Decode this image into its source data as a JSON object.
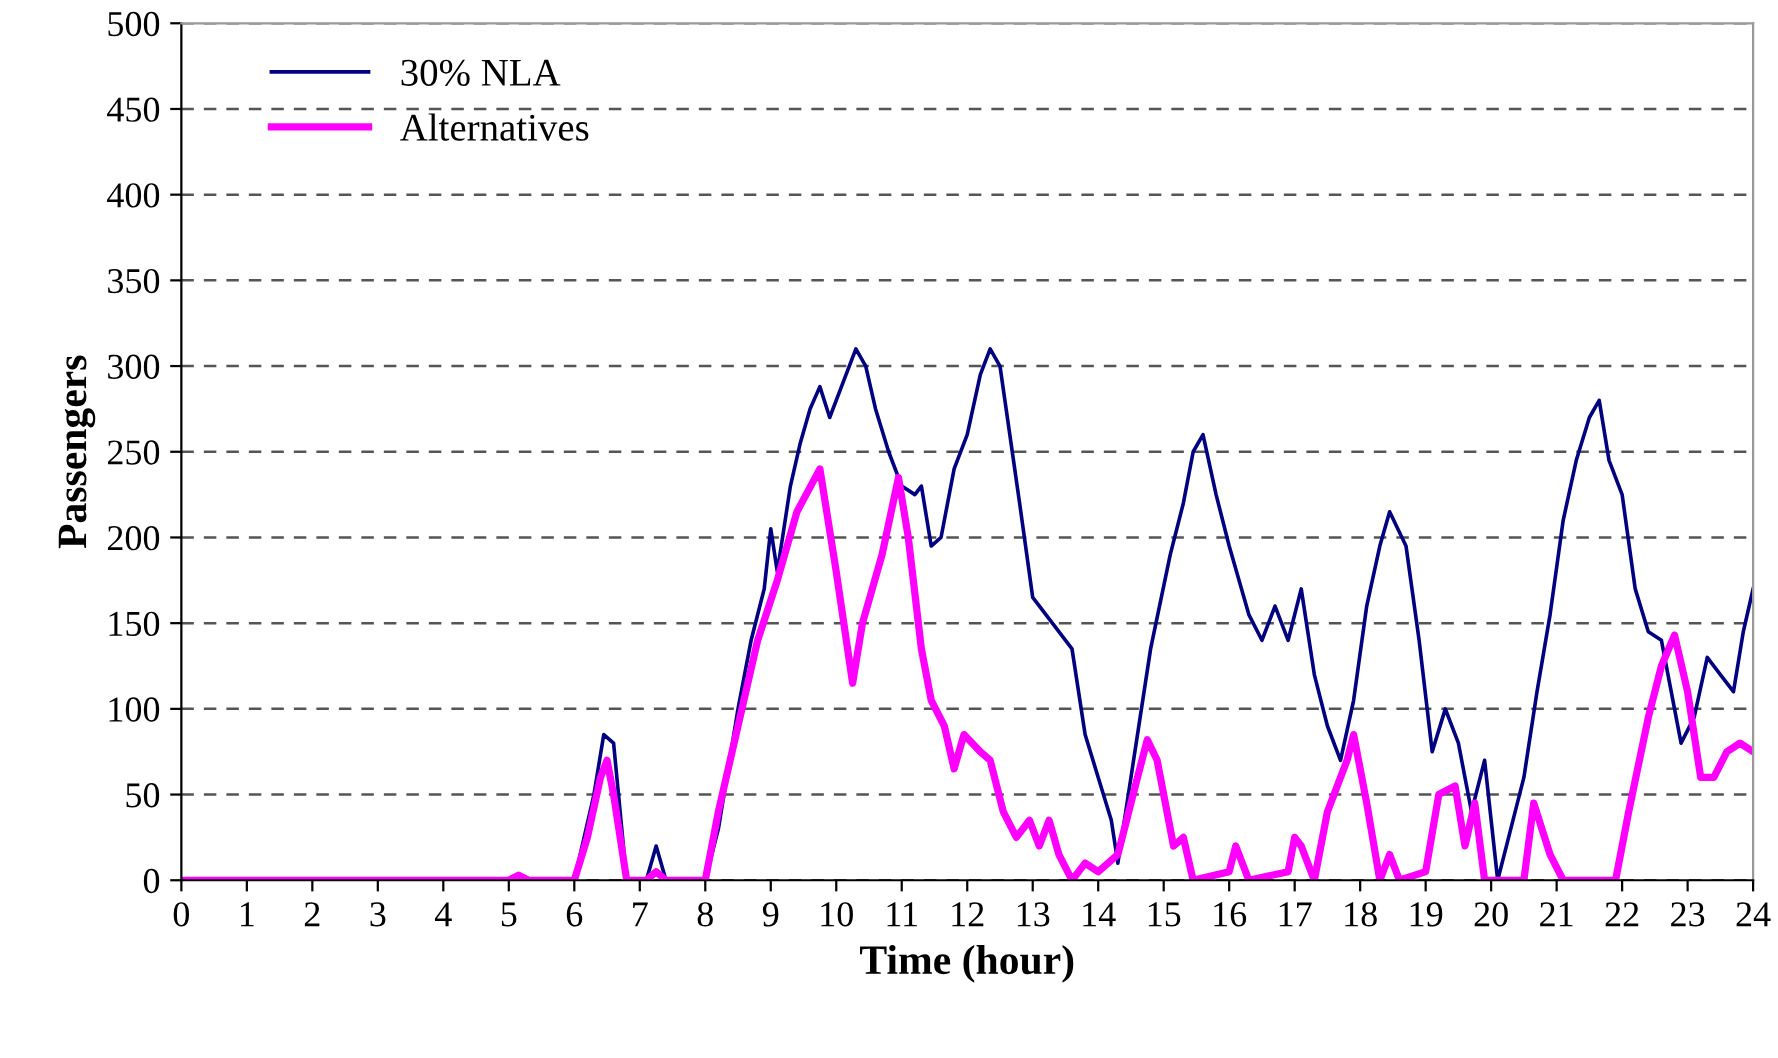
{
  "chart_data": {
    "type": "line",
    "xlabel": "Time (hour)",
    "ylabel": "Passengers",
    "xlim": [
      0,
      24
    ],
    "ylim": [
      0,
      500
    ],
    "xticks": [
      0,
      1,
      2,
      3,
      4,
      5,
      6,
      7,
      8,
      9,
      10,
      11,
      12,
      13,
      14,
      15,
      16,
      17,
      18,
      19,
      20,
      21,
      22,
      23,
      24
    ],
    "yticks": [
      0,
      50,
      100,
      150,
      200,
      250,
      300,
      350,
      400,
      450,
      500
    ],
    "grid": "y",
    "legend": "top left",
    "marker": "none",
    "line_style": "solid",
    "series": [
      {
        "name": "30% NLA",
        "color": "#000080",
        "x": [
          0,
          6.0,
          6.3,
          6.45,
          6.6,
          6.8,
          7.1,
          7.25,
          7.4,
          8.0,
          8.2,
          8.5,
          8.7,
          8.9,
          9.0,
          9.1,
          9.3,
          9.45,
          9.6,
          9.75,
          9.9,
          10.1,
          10.3,
          10.45,
          10.6,
          10.8,
          11.0,
          11.2,
          11.3,
          11.45,
          11.6,
          11.8,
          12.0,
          12.2,
          12.35,
          12.5,
          12.8,
          13.0,
          13.3,
          13.6,
          13.8,
          14.0,
          14.2,
          14.3,
          14.5,
          14.8,
          15.1,
          15.3,
          15.45,
          15.6,
          15.8,
          16.0,
          16.3,
          16.5,
          16.7,
          16.9,
          17.1,
          17.3,
          17.5,
          17.7,
          17.9,
          18.1,
          18.3,
          18.45,
          18.7,
          18.9,
          19.1,
          19.3,
          19.5,
          19.7,
          19.9,
          20.0,
          20.1,
          20.3,
          20.5,
          20.7,
          20.9,
          21.1,
          21.3,
          21.5,
          21.65,
          21.8,
          22.0,
          22.2,
          22.4,
          22.6,
          22.8,
          22.9,
          23.1,
          23.3,
          23.5,
          23.7,
          23.85,
          24.0
        ],
        "values": [
          0,
          0,
          50,
          85,
          80,
          0,
          0,
          20,
          0,
          0,
          30,
          100,
          140,
          170,
          205,
          180,
          230,
          255,
          275,
          288,
          270,
          290,
          310,
          300,
          275,
          250,
          230,
          225,
          230,
          195,
          200,
          240,
          260,
          295,
          310,
          300,
          220,
          165,
          150,
          135,
          85,
          60,
          35,
          10,
          60,
          135,
          190,
          220,
          250,
          260,
          225,
          195,
          155,
          140,
          160,
          140,
          170,
          120,
          90,
          70,
          105,
          160,
          195,
          215,
          195,
          140,
          75,
          100,
          80,
          40,
          70,
          35,
          0,
          30,
          60,
          110,
          155,
          210,
          245,
          270,
          280,
          245,
          225,
          170,
          145,
          140,
          100,
          80,
          95,
          130,
          120,
          110,
          145,
          170
        ]
      },
      {
        "name": "Alternatives",
        "color": "#ff00ff",
        "x": [
          0,
          5.0,
          5.15,
          5.3,
          6.0,
          6.2,
          6.4,
          6.5,
          6.6,
          6.8,
          7.1,
          7.25,
          7.4,
          8.0,
          8.2,
          8.5,
          8.8,
          9.1,
          9.4,
          9.75,
          10.0,
          10.25,
          10.4,
          10.7,
          10.95,
          11.1,
          11.3,
          11.45,
          11.65,
          11.8,
          11.95,
          12.2,
          12.35,
          12.55,
          12.75,
          12.95,
          13.1,
          13.25,
          13.4,
          13.6,
          13.8,
          14.0,
          14.3,
          14.6,
          14.75,
          14.9,
          15.15,
          15.3,
          15.45,
          16.0,
          16.1,
          16.3,
          16.9,
          17.0,
          17.1,
          17.3,
          17.5,
          17.8,
          17.9,
          18.1,
          18.3,
          18.45,
          18.6,
          19.0,
          19.2,
          19.45,
          19.6,
          19.75,
          19.9,
          20.5,
          20.65,
          20.9,
          21.1,
          21.9,
          22.1,
          22.4,
          22.6,
          22.8,
          23.0,
          23.2,
          23.4,
          23.6,
          23.8,
          24.0
        ],
        "values": [
          0,
          0,
          3,
          0,
          0,
          25,
          60,
          70,
          50,
          0,
          0,
          5,
          0,
          0,
          40,
          90,
          140,
          175,
          215,
          240,
          180,
          115,
          150,
          190,
          235,
          200,
          135,
          105,
          90,
          65,
          85,
          75,
          70,
          40,
          25,
          35,
          20,
          35,
          15,
          0,
          10,
          5,
          15,
          60,
          82,
          70,
          20,
          25,
          0,
          5,
          20,
          0,
          5,
          25,
          20,
          0,
          40,
          70,
          85,
          45,
          0,
          15,
          0,
          5,
          50,
          55,
          20,
          45,
          0,
          0,
          45,
          15,
          0,
          0,
          40,
          95,
          125,
          143,
          110,
          60,
          60,
          75,
          80,
          75
        ]
      }
    ]
  }
}
